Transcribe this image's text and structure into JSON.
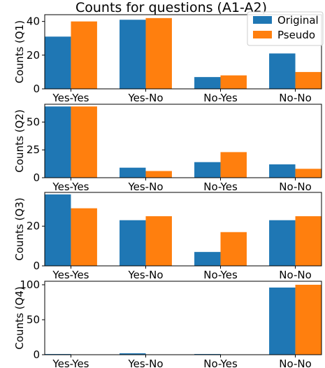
{
  "chart_data": {
    "type": "bar",
    "title": "Counts for questions (A1-A2)",
    "categories": [
      "Yes-Yes",
      "Yes-No",
      "No-Yes",
      "No-No"
    ],
    "legend": {
      "placement": "top-right",
      "entries": [
        {
          "name": "Original",
          "color": "#1f77b4"
        },
        {
          "name": "Pseudo",
          "color": "#ff7f0e"
        }
      ]
    },
    "grid": false,
    "panels": [
      {
        "ylabel": "Counts (Q1)",
        "ylim": [
          0,
          44
        ],
        "yticks": [
          0,
          20,
          40
        ],
        "series": [
          {
            "name": "Original",
            "values": [
              31,
              41,
              7,
              21
            ]
          },
          {
            "name": "Pseudo",
            "values": [
              40,
              42,
              8,
              10
            ]
          }
        ]
      },
      {
        "ylabel": "Counts (Q2)",
        "ylim": [
          0,
          66
        ],
        "yticks": [
          0,
          25,
          50
        ],
        "series": [
          {
            "name": "Original",
            "values": [
              64,
              9,
              14,
              12
            ]
          },
          {
            "name": "Pseudo",
            "values": [
              64,
              6,
              23,
              8
            ]
          }
        ]
      },
      {
        "ylabel": "Counts (Q3)",
        "ylim": [
          0,
          37
        ],
        "yticks": [
          0,
          20
        ],
        "series": [
          {
            "name": "Original",
            "values": [
              36,
              23,
              7,
              23
            ]
          },
          {
            "name": "Pseudo",
            "values": [
              29,
              25,
              17,
              25
            ]
          }
        ]
      },
      {
        "ylabel": "Counts (Q4)",
        "ylim": [
          0,
          105
        ],
        "yticks": [
          0,
          50,
          100
        ],
        "series": [
          {
            "name": "Original",
            "values": [
              1,
              2,
              1,
              96
            ]
          },
          {
            "name": "Pseudo",
            "values": [
              0,
              0,
              0,
              100
            ]
          }
        ]
      }
    ]
  }
}
